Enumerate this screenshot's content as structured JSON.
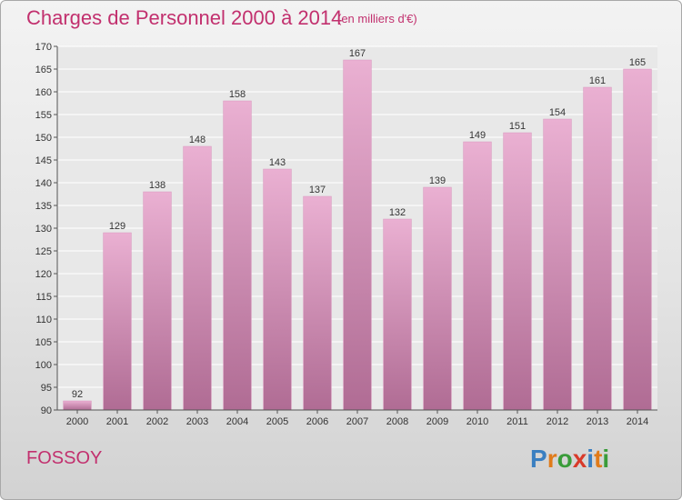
{
  "header": {
    "title": "Charges de Personnel 2000 à 2014",
    "subtitle": "(en milliers d'€)"
  },
  "footer": {
    "city": "FOSSOY",
    "logo": {
      "text": "Proxiti",
      "letters": [
        {
          "char": "P",
          "color": "#3a7fc1"
        },
        {
          "char": "r",
          "color": "#e07b1a"
        },
        {
          "char": "o",
          "color": "#3a9c3a"
        },
        {
          "char": "x",
          "color": "#d83a2a"
        },
        {
          "char": "i",
          "color": "#3a7fc1"
        },
        {
          "char": "t",
          "color": "#e07b1a"
        },
        {
          "char": "i",
          "color": "#3a9c3a"
        }
      ]
    }
  },
  "colors": {
    "accent": "#c2306e",
    "bar_top": "#eab0d2",
    "bar_bottom": "#b06c94"
  },
  "chart_data": {
    "type": "bar",
    "title": "Charges de Personnel 2000 à 2014",
    "subtitle": "(en milliers d'€)",
    "categories": [
      "2000",
      "2001",
      "2002",
      "2003",
      "2004",
      "2005",
      "2006",
      "2007",
      "2008",
      "2009",
      "2010",
      "2011",
      "2012",
      "2013",
      "2014"
    ],
    "values": [
      92,
      129,
      138,
      148,
      158,
      143,
      137,
      167,
      132,
      139,
      149,
      151,
      154,
      161,
      165
    ],
    "ylim": [
      90,
      170
    ],
    "yticks": [
      90,
      95,
      100,
      105,
      110,
      115,
      120,
      125,
      130,
      135,
      140,
      145,
      150,
      155,
      160,
      165,
      170
    ],
    "grid": true,
    "legend": "none",
    "data_labels": true
  }
}
